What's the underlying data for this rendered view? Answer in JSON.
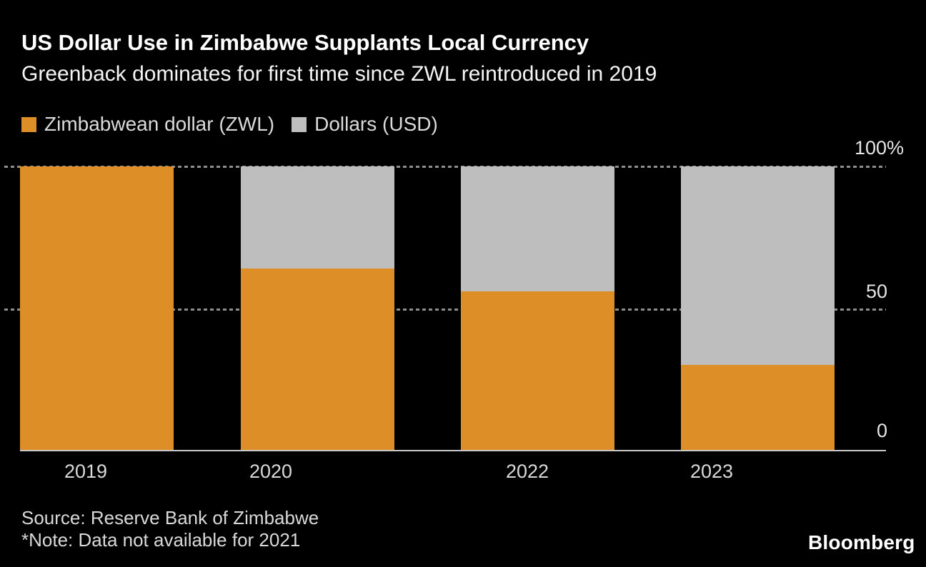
{
  "header": {
    "title": "US Dollar Use in Zimbabwe Supplants Local Currency",
    "subtitle": "Greenback dominates for first time since ZWL reintroduced in 2019"
  },
  "chart_data": {
    "type": "bar",
    "stacked": true,
    "categories": [
      "2019",
      "2020",
      "2022",
      "2023"
    ],
    "series": [
      {
        "name": "Zimbabwean dollar (ZWL)",
        "color": "#DE8E27",
        "values": [
          100,
          64,
          56,
          30
        ]
      },
      {
        "name": "Dollars (USD)",
        "color": "#BEBEBE",
        "values": [
          0,
          36,
          44,
          70
        ]
      }
    ],
    "unit": "%",
    "ylim": [
      0,
      100
    ],
    "y_ticks": [
      {
        "label": "100%",
        "value": 100
      },
      {
        "label": "50",
        "value": 50
      },
      {
        "label": "0",
        "value": 0
      }
    ],
    "gridlines": [
      100,
      50
    ],
    "grid_style": "dashed horizontal",
    "legend_position": "top-left"
  },
  "footer": {
    "source": "Source: Reserve Bank of Zimbabwe",
    "note": "*Note: Data not available for 2021",
    "brand": "Bloomberg"
  },
  "colors": {
    "background": "#000000",
    "zwl": "#DE8E27",
    "usd": "#BEBEBE",
    "gridline": "#8E8E8E",
    "axis_line": "#C9C9C9",
    "title_text": "#FFFFFF",
    "body_text": "#D9D9D9"
  }
}
